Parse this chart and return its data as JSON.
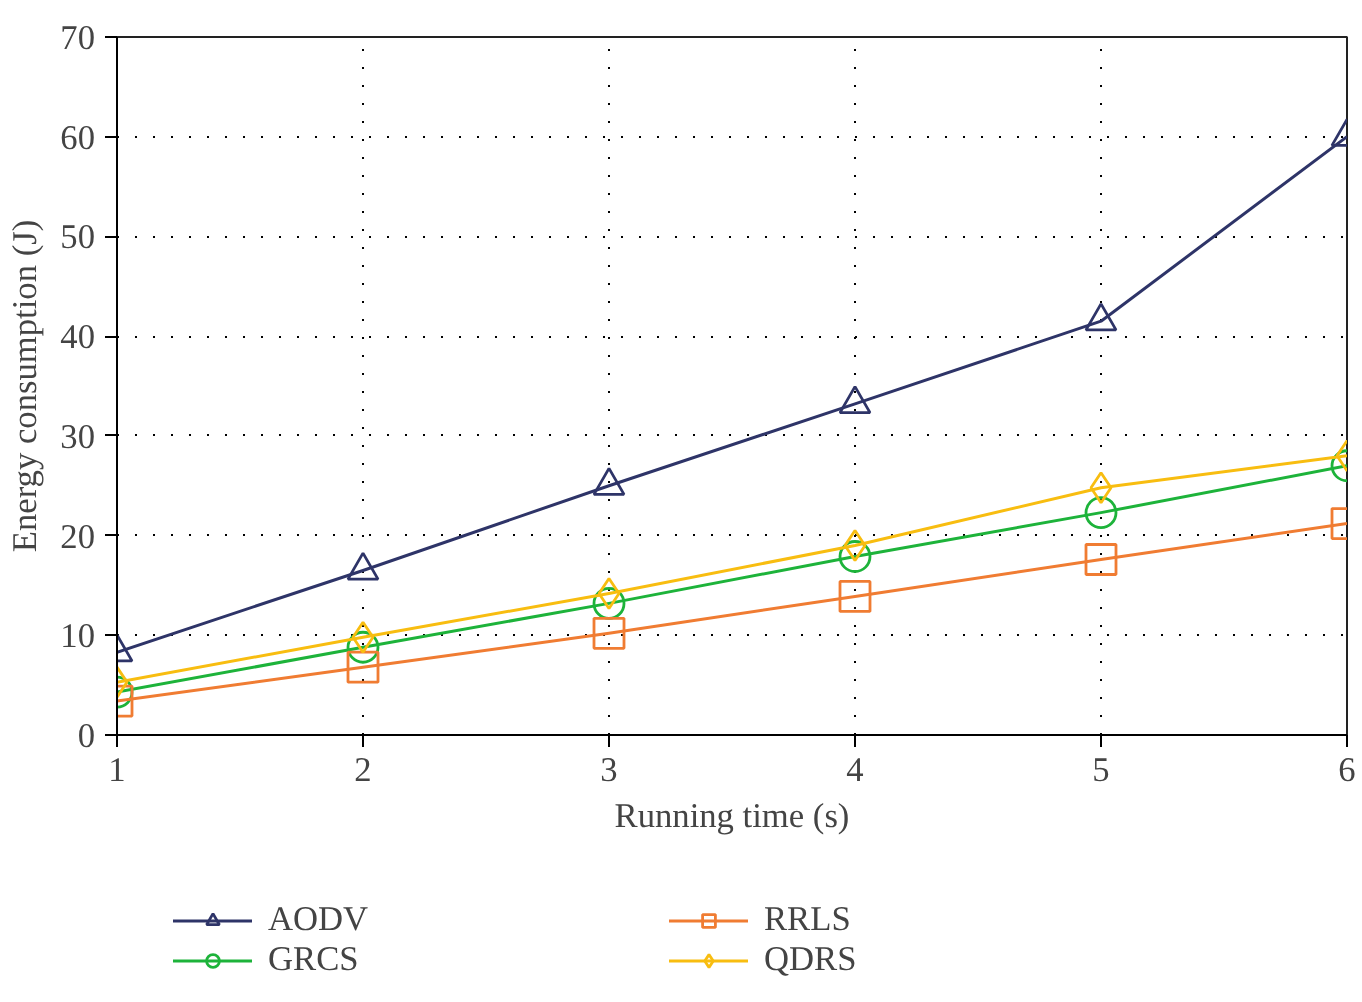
{
  "chart_data": {
    "type": "line",
    "xlabel": "Running time (s)",
    "ylabel": "Energy consumption (J)",
    "x": [
      1,
      2,
      3,
      4,
      5,
      6
    ],
    "xlim": [
      1,
      6
    ],
    "xticks": [
      1,
      2,
      3,
      4,
      5,
      6
    ],
    "ylim": [
      0,
      70
    ],
    "yticks": [
      0,
      10,
      20,
      30,
      40,
      50,
      60,
      70
    ],
    "grid": true,
    "legend": "bottom",
    "line_style": "solid",
    "series": [
      {
        "name": "AODV",
        "color": "#2e3468",
        "marker": "triangle",
        "values": [
          8.3,
          16.5,
          25,
          33.2,
          41.5,
          60
        ]
      },
      {
        "name": "GRCS",
        "color": "#1db33a",
        "marker": "circle",
        "values": [
          4.3,
          8.8,
          13.2,
          17.9,
          22.3,
          27
        ]
      },
      {
        "name": "RRLS",
        "color": "#f07c32",
        "marker": "square",
        "values": [
          3.4,
          6.8,
          10.2,
          13.9,
          17.6,
          21.2
        ]
      },
      {
        "name": "QDRS",
        "color": "#f8bd10",
        "marker": "diamond",
        "values": [
          5.3,
          9.8,
          14.2,
          19,
          24.8,
          28
        ]
      }
    ]
  }
}
